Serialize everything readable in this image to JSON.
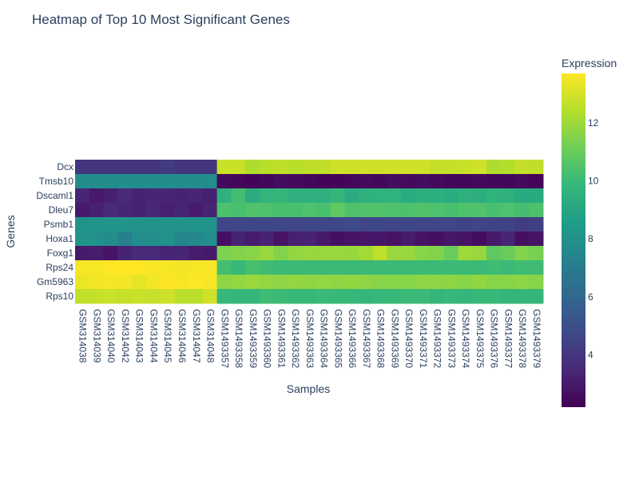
{
  "chart_data": {
    "type": "heatmap",
    "title": "Heatmap of Top 10 Most Significant Genes",
    "xlabel": "Samples",
    "ylabel": "Genes",
    "colorbar_title": "Expression",
    "colorscale": "viridis",
    "zrange": [
      2.2,
      13.7
    ],
    "colorbar_ticks": [
      4,
      6,
      8,
      10,
      12
    ],
    "x": [
      "GSM314038",
      "GSM314039",
      "GSM314040",
      "GSM314042",
      "GSM314043",
      "GSM314044",
      "GSM314045",
      "GSM314046",
      "GSM314047",
      "GSM314048",
      "GSM1493357",
      "GSM1493358",
      "GSM1493359",
      "GSM1493360",
      "GSM1493361",
      "GSM1493362",
      "GSM1493363",
      "GSM1493364",
      "GSM1493365",
      "GSM1493366",
      "GSM1493367",
      "GSM1493368",
      "GSM1493369",
      "GSM1493370",
      "GSM1493371",
      "GSM1493372",
      "GSM1493373",
      "GSM1493374",
      "GSM1493375",
      "GSM1493376",
      "GSM1493377",
      "GSM1493378",
      "GSM1493379"
    ],
    "y": [
      "Dcx",
      "Tmsb10",
      "Dscaml1",
      "Dleu7",
      "Psmb1",
      "Hoxa1",
      "Foxg1",
      "Rps24",
      "Gm5963",
      "Rps10"
    ],
    "z": [
      [
        4.0,
        4.0,
        4.0,
        4.0,
        4.0,
        4.0,
        4.2,
        4.0,
        4.0,
        4.0,
        12.8,
        12.8,
        12.3,
        12.5,
        12.6,
        12.5,
        12.6,
        12.6,
        12.9,
        12.9,
        12.9,
        12.9,
        12.9,
        12.9,
        12.9,
        12.7,
        12.7,
        12.8,
        12.9,
        12.3,
        12.4,
        12.7,
        12.6
      ],
      [
        7.8,
        7.8,
        7.8,
        7.8,
        7.8,
        7.8,
        7.8,
        7.8,
        7.8,
        7.8,
        2.5,
        2.4,
        2.3,
        2.4,
        2.6,
        2.5,
        2.4,
        2.3,
        2.3,
        2.4,
        2.5,
        2.4,
        2.6,
        2.5,
        2.6,
        2.5,
        2.4,
        2.4,
        2.5,
        2.4,
        2.4,
        2.5,
        2.3
      ],
      [
        3.4,
        3.0,
        3.2,
        3.6,
        3.3,
        3.4,
        3.4,
        3.3,
        3.4,
        3.2,
        9.5,
        10.2,
        9.3,
        9.7,
        9.8,
        9.5,
        9.5,
        9.5,
        9.8,
        9.3,
        9.5,
        9.6,
        9.6,
        9.3,
        9.4,
        9.4,
        9.3,
        9.5,
        9.4,
        9.6,
        9.5,
        9.2,
        9.2
      ],
      [
        3.0,
        3.2,
        3.6,
        3.4,
        3.3,
        3.5,
        3.2,
        3.4,
        3.1,
        3.3,
        10.4,
        10.3,
        10.5,
        10.4,
        10.3,
        10.3,
        10.4,
        10.3,
        10.8,
        10.4,
        10.5,
        10.5,
        10.4,
        10.4,
        10.5,
        10.4,
        10.3,
        10.4,
        10.5,
        10.3,
        10.4,
        10.2,
        10.4
      ],
      [
        8.1,
        8.2,
        8.2,
        8.2,
        8.1,
        8.1,
        8.1,
        8.1,
        8.2,
        8.1,
        4.6,
        4.6,
        4.7,
        4.6,
        4.7,
        4.6,
        4.7,
        4.6,
        4.7,
        4.8,
        4.6,
        4.7,
        4.6,
        4.7,
        4.6,
        4.6,
        4.6,
        4.5,
        4.6,
        4.5,
        4.5,
        4.3,
        4.4
      ],
      [
        8.2,
        8.0,
        7.8,
        7.2,
        7.9,
        7.9,
        8.1,
        7.5,
        7.6,
        7.9,
        2.7,
        3.3,
        3.1,
        3.3,
        2.8,
        3.2,
        3.3,
        3.0,
        2.7,
        2.8,
        2.9,
        2.9,
        2.8,
        3.1,
        2.8,
        2.7,
        2.9,
        2.8,
        2.6,
        3.0,
        3.4,
        2.7,
        2.8
      ],
      [
        3.0,
        3.1,
        2.8,
        3.3,
        3.6,
        3.6,
        3.3,
        3.4,
        3.1,
        3.0,
        11.4,
        11.5,
        11.6,
        11.9,
        11.5,
        11.8,
        11.9,
        11.9,
        11.9,
        11.9,
        12.1,
        12.6,
        11.9,
        11.9,
        11.6,
        11.5,
        11.0,
        12.0,
        11.9,
        10.8,
        11.0,
        11.5,
        11.3
      ],
      [
        13.6,
        13.6,
        13.7,
        13.8,
        13.7,
        13.6,
        13.6,
        13.5,
        13.6,
        13.6,
        10.2,
        9.9,
        10.3,
        10.1,
        10.0,
        10.0,
        10.0,
        10.0,
        10.0,
        10.0,
        10.0,
        10.0,
        10.0,
        10.0,
        10.0,
        10.0,
        10.0,
        10.0,
        10.0,
        10.1,
        10.0,
        10.1,
        10.1
      ],
      [
        13.4,
        13.5,
        13.6,
        13.5,
        13.3,
        13.5,
        13.7,
        13.6,
        14.0,
        13.6,
        11.7,
        11.8,
        11.9,
        11.8,
        11.7,
        11.8,
        11.7,
        11.8,
        11.7,
        11.8,
        11.7,
        11.6,
        11.6,
        11.6,
        11.7,
        11.7,
        11.7,
        11.6,
        11.8,
        11.6,
        11.6,
        11.7,
        11.6
      ],
      [
        12.6,
        12.7,
        12.8,
        12.7,
        12.8,
        12.7,
        12.9,
        12.5,
        12.5,
        12.9,
        9.9,
        9.8,
        9.8,
        10.1,
        10.0,
        9.9,
        9.9,
        10.0,
        9.9,
        9.9,
        9.8,
        9.9,
        9.9,
        10.0,
        10.0,
        9.8,
        9.9,
        9.8,
        9.9,
        9.9,
        9.8,
        9.8,
        9.8
      ]
    ]
  }
}
